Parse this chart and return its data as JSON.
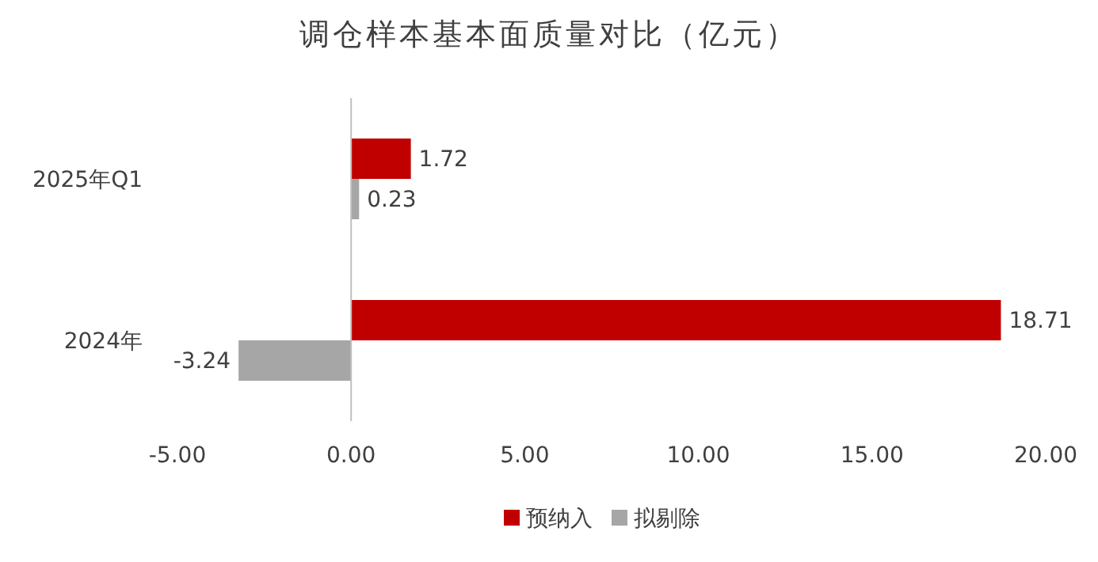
{
  "chart_data": {
    "type": "bar",
    "orientation": "horizontal",
    "title": "调仓样本基本面质量对比（亿元）",
    "categories": [
      "2025年Q1",
      "2024年"
    ],
    "series": [
      {
        "name": "预纳入",
        "color": "#c00000",
        "values": [
          1.72,
          18.71
        ]
      },
      {
        "name": "拟剔除",
        "color": "#a6a6a6",
        "values": [
          0.23,
          -3.24
        ]
      }
    ],
    "xlim": [
      -5,
      20
    ],
    "xticks": [
      {
        "value": -5,
        "label": "-5.00"
      },
      {
        "value": 0,
        "label": "0.00"
      },
      {
        "value": 5,
        "label": "5.00"
      },
      {
        "value": 10,
        "label": "10.00"
      },
      {
        "value": 15,
        "label": "15.00"
      },
      {
        "value": 20,
        "label": "20.00"
      }
    ],
    "data_labels": true,
    "legend": "bottom"
  }
}
